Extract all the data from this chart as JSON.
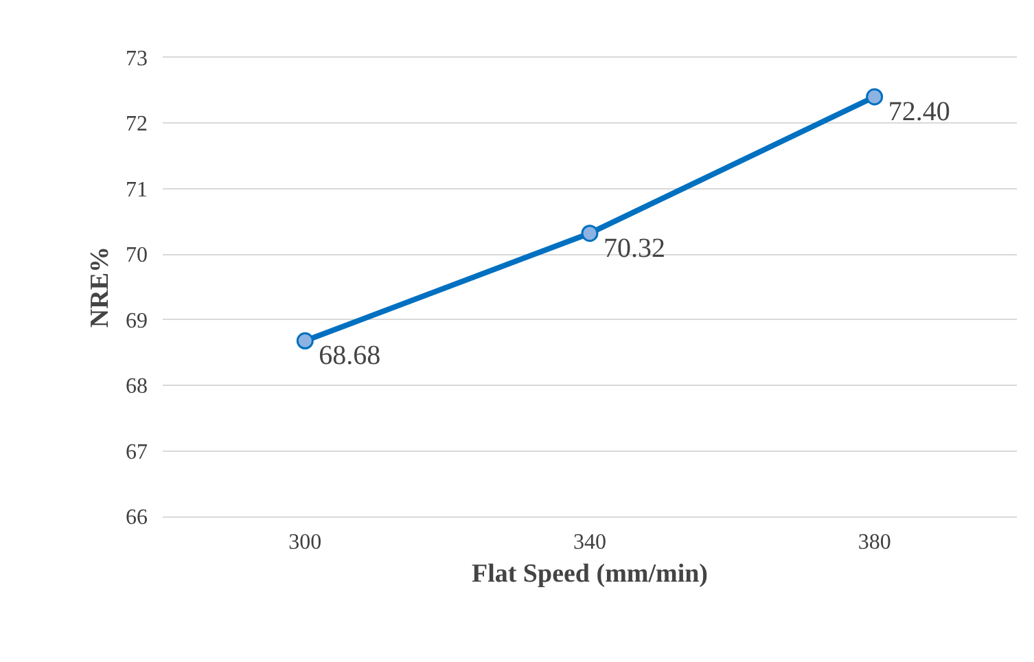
{
  "chart_data": {
    "type": "line",
    "xlabel": "Flat Speed (mm/min)",
    "ylabel": "NRE%",
    "categories": [
      "300",
      "340",
      "380"
    ],
    "series": [
      {
        "color": "#0070c0",
        "values": [
          68.68,
          70.32,
          72.4
        ],
        "value_labels": [
          "68.68",
          "70.32",
          "72.40"
        ]
      }
    ],
    "ylim": [
      66,
      73
    ],
    "yticks": [
      66,
      67,
      68,
      69,
      70,
      71,
      72,
      73
    ],
    "grid": "y",
    "marker": "circle",
    "line_style": "solid"
  }
}
